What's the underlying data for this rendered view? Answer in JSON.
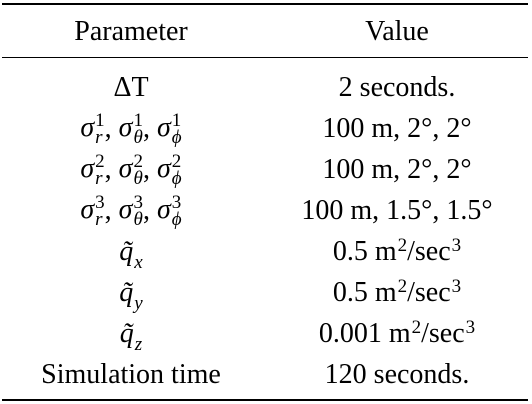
{
  "table": {
    "header": [
      "Parameter",
      "Value"
    ],
    "rows": [
      [
        [
          "ΔT"
        ],
        [
          "2 seconds."
        ]
      ],
      [
        [
          {
            "base": "σ",
            "sub": "r",
            "sup": "1"
          },
          ", ",
          {
            "base": "σ",
            "sub": "θ",
            "sup": "1"
          },
          ", ",
          {
            "base": "σ",
            "sub": "ϕ",
            "sup": "1"
          }
        ],
        [
          "100 m, 2°, 2°"
        ]
      ],
      [
        [
          {
            "base": "σ",
            "sub": "r",
            "sup": "2"
          },
          ", ",
          {
            "base": "σ",
            "sub": "θ",
            "sup": "2"
          },
          ", ",
          {
            "base": "σ",
            "sub": "ϕ",
            "sup": "2"
          }
        ],
        [
          "100 m, 2°, 2°"
        ]
      ],
      [
        [
          {
            "base": "σ",
            "sub": "r",
            "sup": "3"
          },
          ", ",
          {
            "base": "σ",
            "sub": "θ",
            "sup": "3"
          },
          ", ",
          {
            "base": "σ",
            "sub": "ϕ",
            "sup": "3"
          }
        ],
        [
          "100 m, 1.5°, 1.5°"
        ]
      ],
      [
        [
          {
            "base": "q̃",
            "sub": "x"
          }
        ],
        [
          {
            "base": "0.5 m",
            "sup": "2"
          },
          {
            "base": "/sec",
            "sup": "3"
          }
        ]
      ],
      [
        [
          {
            "base": "q̃",
            "sub": "y"
          }
        ],
        [
          {
            "base": "0.5 m",
            "sup": "2"
          },
          {
            "base": "/sec",
            "sup": "3"
          }
        ]
      ],
      [
        [
          {
            "base": "q̃",
            "sub": "z"
          }
        ],
        [
          {
            "base": "0.001 m",
            "sup": "2"
          },
          {
            "base": "/sec",
            "sup": "3"
          }
        ]
      ],
      [
        [
          "Simulation time"
        ],
        [
          "120 seconds."
        ]
      ]
    ]
  }
}
